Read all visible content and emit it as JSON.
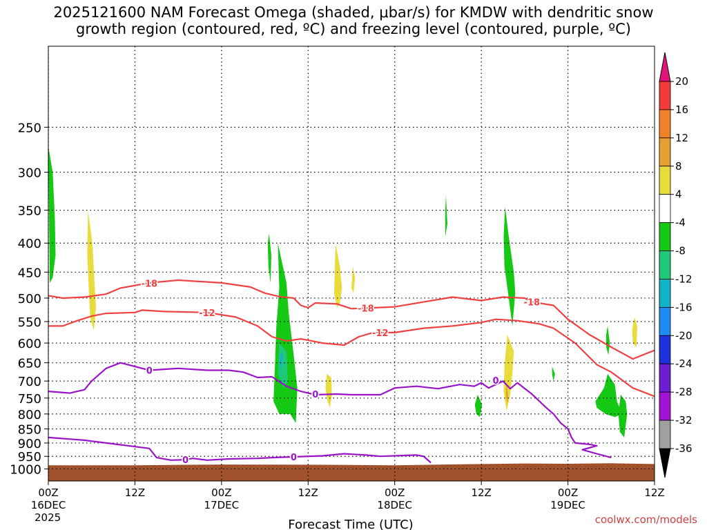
{
  "chart_data": {
    "type": "heatmap",
    "title": "2025121600 NAM Forecast Omega (shaded, μbar/s) for KMDW with dendritic snow\ngrowth region (contoured, red, ºC) and freezing level (contoured, purple, ºC)",
    "xlabel": "Forecast Time (UTC)",
    "ylabel": "",
    "y_scale": "log-pressure",
    "ylim": [
      1050,
      180
    ],
    "xlim": [
      0,
      84
    ],
    "grid": true,
    "y_ticks": [
      250,
      300,
      350,
      400,
      450,
      500,
      550,
      600,
      650,
      700,
      750,
      800,
      850,
      900,
      950,
      1000
    ],
    "x_ticks": [
      {
        "hour": 0,
        "time": "00Z",
        "date": "16DEC",
        "year": "2025"
      },
      {
        "hour": 12,
        "time": "12Z",
        "date": "",
        "year": ""
      },
      {
        "hour": 24,
        "time": "00Z",
        "date": "17DEC",
        "year": ""
      },
      {
        "hour": 36,
        "time": "12Z",
        "date": "",
        "year": ""
      },
      {
        "hour": 48,
        "time": "00Z",
        "date": "18DEC",
        "year": ""
      },
      {
        "hour": 60,
        "time": "12Z",
        "date": "",
        "year": ""
      },
      {
        "hour": 72,
        "time": "00Z",
        "date": "19DEC",
        "year": ""
      },
      {
        "hour": 84,
        "time": "12Z",
        "date": "",
        "year": ""
      }
    ],
    "colorbar": {
      "labels": [
        "20",
        "16",
        "12",
        "8",
        "4",
        "-4",
        "-8",
        "-12",
        "-16",
        "-20",
        "-24",
        "-28",
        "-32",
        "-36"
      ],
      "colors": [
        "#f03c3c",
        "#f08228",
        "#e6a032",
        "#e8dc3c",
        "#ffffff",
        "#14c814",
        "#1ec878",
        "#14b4c8",
        "#1e8cf0",
        "#1e32dc",
        "#6e1ed2",
        "#a014d2",
        "#a0a0a0"
      ],
      "top_arrow_color": "#e0147a",
      "bottom_arrow_color": "#000000"
    },
    "contours": [
      {
        "label": "-18",
        "color": "#f04040",
        "points": [
          [
            0,
            495
          ],
          [
            2,
            500
          ],
          [
            5,
            498
          ],
          [
            8,
            492
          ],
          [
            10,
            480
          ],
          [
            14,
            470
          ],
          [
            18,
            465
          ],
          [
            24,
            470
          ],
          [
            28,
            478
          ],
          [
            30,
            490
          ],
          [
            32,
            497
          ],
          [
            34,
            500
          ],
          [
            35,
            515
          ],
          [
            36,
            520
          ],
          [
            37,
            510
          ],
          [
            40,
            512
          ],
          [
            42,
            522
          ],
          [
            45,
            520
          ],
          [
            48,
            518
          ],
          [
            52,
            508
          ],
          [
            56,
            498
          ],
          [
            60,
            505
          ],
          [
            63,
            498
          ],
          [
            66,
            500
          ],
          [
            67,
            508
          ],
          [
            70,
            515
          ],
          [
            72,
            545
          ],
          [
            75,
            580
          ],
          [
            78,
            610
          ],
          [
            81,
            640
          ],
          [
            84,
            618
          ]
        ],
        "labels_at": [
          [
            14,
            471
          ],
          [
            44,
            521
          ],
          [
            67,
            508
          ]
        ]
      },
      {
        "label": "-12",
        "color": "#f04040",
        "points": [
          [
            0,
            560
          ],
          [
            2,
            560
          ],
          [
            4,
            548
          ],
          [
            6,
            538
          ],
          [
            8,
            532
          ],
          [
            12,
            530
          ],
          [
            13,
            525
          ],
          [
            16,
            528
          ],
          [
            22,
            530
          ],
          [
            26,
            540
          ],
          [
            29,
            560
          ],
          [
            31,
            585
          ],
          [
            33,
            595
          ],
          [
            35,
            590
          ],
          [
            38,
            600
          ],
          [
            41,
            605
          ],
          [
            43,
            585
          ],
          [
            45,
            575
          ],
          [
            48,
            575
          ],
          [
            52,
            565
          ],
          [
            56,
            560
          ],
          [
            60,
            552
          ],
          [
            62,
            545
          ],
          [
            65,
            548
          ],
          [
            68,
            555
          ],
          [
            70,
            565
          ],
          [
            73,
            600
          ],
          [
            76,
            655
          ],
          [
            78,
            675
          ],
          [
            81,
            720
          ],
          [
            84,
            745
          ]
        ],
        "labels_at": [
          [
            22,
            530
          ],
          [
            46,
            575
          ]
        ]
      },
      {
        "label": "0",
        "color": "#9914c8",
        "points": [
          [
            0,
            730
          ],
          [
            3,
            735
          ],
          [
            5,
            725
          ],
          [
            6,
            700
          ],
          [
            8,
            665
          ],
          [
            10,
            650
          ],
          [
            12,
            660
          ],
          [
            14,
            670
          ],
          [
            18,
            665
          ],
          [
            22,
            670
          ],
          [
            25,
            670
          ],
          [
            27,
            675
          ],
          [
            29,
            690
          ],
          [
            31,
            688
          ],
          [
            33,
            715
          ],
          [
            35,
            730
          ],
          [
            37,
            740
          ],
          [
            40,
            738
          ],
          [
            42,
            740
          ],
          [
            46,
            740
          ],
          [
            48,
            720
          ],
          [
            51,
            715
          ],
          [
            54,
            722
          ],
          [
            57,
            710
          ],
          [
            59,
            715
          ],
          [
            60,
            705
          ],
          [
            61,
            720
          ],
          [
            63,
            700
          ],
          [
            64,
            722
          ],
          [
            65,
            705
          ],
          [
            67,
            738
          ],
          [
            69,
            780
          ],
          [
            70,
            800
          ],
          [
            71,
            830
          ],
          [
            72,
            850
          ],
          [
            72.5,
            880
          ],
          [
            73,
            900
          ],
          [
            75,
            905
          ],
          [
            76,
            910
          ],
          [
            74,
            925
          ],
          [
            76,
            940
          ],
          [
            78,
            955
          ]
        ],
        "labels_at": [
          [
            14,
            670
          ],
          [
            37,
            738
          ],
          [
            62,
            698
          ]
        ]
      },
      {
        "label": "0",
        "color": "#9914c8",
        "points": [
          [
            0,
            880
          ],
          [
            5,
            890
          ],
          [
            8,
            900
          ],
          [
            14,
            920
          ],
          [
            15,
            955
          ],
          [
            17,
            965
          ],
          [
            19,
            963
          ],
          [
            20,
            958
          ],
          [
            22,
            965
          ],
          [
            25,
            960
          ],
          [
            29,
            958
          ],
          [
            31,
            955
          ],
          [
            34,
            952
          ],
          [
            38,
            948
          ],
          [
            41,
            940
          ],
          [
            44,
            945
          ],
          [
            46,
            950
          ],
          [
            51,
            945
          ],
          [
            52,
            950
          ],
          [
            53,
            975
          ]
        ],
        "labels_at": [
          [
            19,
            963
          ],
          [
            34,
            952
          ]
        ]
      }
    ],
    "omega_regions": [
      {
        "color": "#14c814",
        "points": [
          [
            0,
            270
          ],
          [
            0.6,
            300
          ],
          [
            0.9,
            360
          ],
          [
            1,
            420
          ],
          [
            0.6,
            460
          ],
          [
            0.2,
            470
          ]
        ]
      },
      {
        "color": "#e8dc3c",
        "points": [
          [
            5.5,
            350
          ],
          [
            6.1,
            400
          ],
          [
            6.4,
            470
          ],
          [
            6.6,
            520
          ],
          [
            6.3,
            570
          ],
          [
            5.8,
            540
          ],
          [
            5.6,
            480
          ],
          [
            5.4,
            420
          ]
        ]
      },
      {
        "color": "#14c814",
        "points": [
          [
            30.6,
            385
          ],
          [
            30.9,
            420
          ],
          [
            30.8,
            470
          ],
          [
            30.5,
            440
          ],
          [
            30.4,
            400
          ]
        ]
      },
      {
        "color": "#14c814",
        "points": [
          [
            31.8,
            400
          ],
          [
            33,
            470
          ],
          [
            33.3,
            530
          ],
          [
            34,
            630
          ],
          [
            34.5,
            720
          ],
          [
            34.3,
            830
          ],
          [
            33.5,
            800
          ],
          [
            32,
            800
          ],
          [
            31.2,
            760
          ],
          [
            31.4,
            660
          ],
          [
            31.6,
            560
          ],
          [
            32,
            480
          ]
        ]
      },
      {
        "color": "#1ec878",
        "points": [
          [
            32,
            600
          ],
          [
            33,
            620
          ],
          [
            33.2,
            700
          ],
          [
            32.6,
            720
          ],
          [
            31.8,
            680
          ],
          [
            31.9,
            640
          ]
        ]
      },
      {
        "color": "#14b4c8",
        "points": [
          [
            32.1,
            625
          ],
          [
            32.5,
            630
          ],
          [
            32.4,
            660
          ],
          [
            32.1,
            660
          ]
        ]
      },
      {
        "color": "#e8dc3c",
        "points": [
          [
            39.8,
            400
          ],
          [
            40.4,
            440
          ],
          [
            40.7,
            480
          ],
          [
            40.4,
            510
          ],
          [
            40,
            520
          ],
          [
            39.6,
            490
          ],
          [
            39.7,
            440
          ]
        ]
      },
      {
        "color": "#e8dc3c",
        "points": [
          [
            42.2,
            440
          ],
          [
            42.5,
            460
          ],
          [
            42.3,
            490
          ],
          [
            42,
            480
          ]
        ]
      },
      {
        "color": "#e8dc3c",
        "points": [
          [
            38.6,
            680
          ],
          [
            39.2,
            690
          ],
          [
            39.3,
            740
          ],
          [
            39,
            780
          ],
          [
            38.7,
            760
          ],
          [
            38.4,
            720
          ]
        ]
      },
      {
        "color": "#14c814",
        "points": [
          [
            55.1,
            330
          ],
          [
            55.3,
            370
          ],
          [
            55,
            390
          ],
          [
            55,
            350
          ]
        ]
      },
      {
        "color": "#14c814",
        "points": [
          [
            63.3,
            345
          ],
          [
            63.8,
            390
          ],
          [
            64.5,
            450
          ],
          [
            64.7,
            490
          ],
          [
            64.3,
            560
          ],
          [
            63.8,
            500
          ],
          [
            63.2,
            440
          ],
          [
            63.1,
            390
          ]
        ]
      },
      {
        "color": "#e8dc3c",
        "points": [
          [
            63.6,
            580
          ],
          [
            64.5,
            620
          ],
          [
            64.3,
            680
          ],
          [
            64,
            740
          ],
          [
            63.5,
            790
          ],
          [
            63.1,
            730
          ],
          [
            63.2,
            660
          ]
        ]
      },
      {
        "color": "#e6a032",
        "points": [
          [
            63.5,
            700
          ],
          [
            63.7,
            740
          ],
          [
            63.6,
            770
          ],
          [
            63.4,
            740
          ]
        ]
      },
      {
        "color": "#14c814",
        "points": [
          [
            59.5,
            740
          ],
          [
            60.1,
            770
          ],
          [
            59.8,
            810
          ],
          [
            59.3,
            800
          ],
          [
            59.1,
            770
          ]
        ]
      },
      {
        "color": "#14c814",
        "points": [
          [
            69.8,
            660
          ],
          [
            70.2,
            680
          ],
          [
            70,
            700
          ],
          [
            69.8,
            680
          ]
        ]
      },
      {
        "color": "#14c814",
        "points": [
          [
            77.5,
            560
          ],
          [
            77.8,
            600
          ],
          [
            77.6,
            630
          ],
          [
            77.3,
            610
          ],
          [
            77.3,
            580
          ]
        ]
      },
      {
        "color": "#14c814",
        "points": [
          [
            77.5,
            680
          ],
          [
            78.5,
            710
          ],
          [
            78.8,
            760
          ],
          [
            79.5,
            800
          ],
          [
            78.5,
            810
          ],
          [
            77.2,
            800
          ],
          [
            76,
            780
          ],
          [
            75.8,
            760
          ],
          [
            77,
            720
          ]
        ]
      },
      {
        "color": "#14c814",
        "points": [
          [
            79.3,
            740
          ],
          [
            80,
            760
          ],
          [
            80.2,
            800
          ],
          [
            79.8,
            880
          ],
          [
            79.2,
            860
          ],
          [
            79,
            800
          ]
        ]
      },
      {
        "color": "#e8dc3c",
        "points": [
          [
            81.2,
            540
          ],
          [
            81.6,
            560
          ],
          [
            81.5,
            610
          ],
          [
            81,
            600
          ],
          [
            80.9,
            570
          ]
        ]
      }
    ],
    "surface": {
      "color": "#a0522d",
      "pressures": [
        [
          0,
          985
        ],
        [
          12,
          985
        ],
        [
          24,
          982
        ],
        [
          36,
          983
        ],
        [
          48,
          985
        ],
        [
          60,
          980
        ],
        [
          66,
          978
        ],
        [
          72,
          979
        ],
        [
          78,
          977
        ],
        [
          84,
          980
        ]
      ]
    }
  },
  "credit": "coolwx.com/models"
}
